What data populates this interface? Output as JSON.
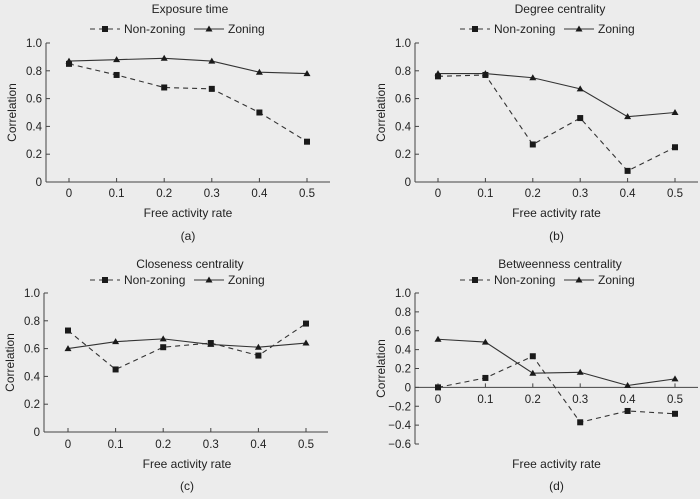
{
  "chart_data": [
    {
      "type": "line",
      "title": "Exposure time",
      "panel_label": "(a)",
      "xlabel": "Free activity rate",
      "ylabel": "Correlation",
      "x": [
        0,
        0.1,
        0.2,
        0.3,
        0.4,
        0.5
      ],
      "x_tick_labels": [
        "0",
        "0.1",
        "0.2",
        "0.3",
        "0.4",
        "0.5"
      ],
      "ylim": [
        0,
        1.0
      ],
      "y_tick_labels": [
        "0",
        "0.2",
        "0.4",
        "0.6",
        "0.8",
        "1.0"
      ],
      "y_ticks": [
        0,
        0.2,
        0.4,
        0.6,
        0.8,
        1.0
      ],
      "legend_position": "top",
      "grid": false,
      "series": [
        {
          "name": "Non-zoning",
          "style": "dashed",
          "marker": "square",
          "values": [
            0.85,
            0.77,
            0.68,
            0.67,
            0.5,
            0.29
          ]
        },
        {
          "name": "Zoning",
          "style": "solid",
          "marker": "triangle",
          "values": [
            0.87,
            0.88,
            0.89,
            0.87,
            0.79,
            0.78
          ]
        }
      ]
    },
    {
      "type": "line",
      "title": "Degree centrality",
      "panel_label": "(b)",
      "xlabel": "Free activity rate",
      "ylabel": "Correlation",
      "x": [
        0,
        0.1,
        0.2,
        0.3,
        0.4,
        0.5
      ],
      "x_tick_labels": [
        "0",
        "0.1",
        "0.2",
        "0.3",
        "0.4",
        "0.5"
      ],
      "ylim": [
        0,
        1.0
      ],
      "y_tick_labels": [
        "0",
        "0.2",
        "0.4",
        "0.6",
        "0.8",
        "1.0"
      ],
      "y_ticks": [
        0,
        0.2,
        0.4,
        0.6,
        0.8,
        1.0
      ],
      "legend_position": "top",
      "grid": false,
      "series": [
        {
          "name": "Non-zoning",
          "style": "dashed",
          "marker": "square",
          "values": [
            0.76,
            0.77,
            0.27,
            0.46,
            0.08,
            0.25
          ]
        },
        {
          "name": "Zoning",
          "style": "solid",
          "marker": "triangle",
          "values": [
            0.78,
            0.78,
            0.75,
            0.67,
            0.47,
            0.5
          ]
        }
      ]
    },
    {
      "type": "line",
      "title": "Closeness centrality",
      "panel_label": "(c)",
      "xlabel": "Free activity rate",
      "ylabel": "Correlation",
      "x": [
        0,
        0.1,
        0.2,
        0.3,
        0.4,
        0.5
      ],
      "x_tick_labels": [
        "0",
        "0.1",
        "0.2",
        "0.3",
        "0.4",
        "0.5"
      ],
      "ylim": [
        0,
        1.0
      ],
      "y_tick_labels": [
        "0",
        "0.2",
        "0.4",
        "0.6",
        "0.8",
        "1.0"
      ],
      "y_ticks": [
        0,
        0.2,
        0.4,
        0.6,
        0.8,
        1.0
      ],
      "legend_position": "top",
      "grid": false,
      "series": [
        {
          "name": "Non-zoning",
          "style": "dashed",
          "marker": "square",
          "values": [
            0.73,
            0.45,
            0.61,
            0.64,
            0.55,
            0.78
          ]
        },
        {
          "name": "Zoning",
          "style": "solid",
          "marker": "triangle",
          "values": [
            0.6,
            0.65,
            0.67,
            0.63,
            0.61,
            0.64
          ]
        }
      ]
    },
    {
      "type": "line",
      "title": "Betweenness centrality",
      "panel_label": "(d)",
      "xlabel": "Free activity rate",
      "ylabel": "Correlation",
      "x": [
        0,
        0.1,
        0.2,
        0.3,
        0.4,
        0.5
      ],
      "x_tick_labels": [
        "0",
        "0.1",
        "0.2",
        "0.3",
        "0.4",
        "0.5"
      ],
      "ylim": [
        -0.6,
        1.0
      ],
      "y_tick_labels": [
        "−0.6",
        "−0.4",
        "−0.2",
        "0",
        "0.2",
        "0.4",
        "0.6",
        "0.8",
        "1.0"
      ],
      "y_ticks": [
        -0.6,
        -0.4,
        -0.2,
        0,
        0.2,
        0.4,
        0.6,
        0.8,
        1.0
      ],
      "legend_position": "top",
      "grid": false,
      "series": [
        {
          "name": "Non-zoning",
          "style": "dashed",
          "marker": "square",
          "values": [
            0.0,
            0.1,
            0.33,
            -0.37,
            -0.25,
            -0.28
          ]
        },
        {
          "name": "Zoning",
          "style": "solid",
          "marker": "triangle",
          "values": [
            0.51,
            0.48,
            0.15,
            0.16,
            0.02,
            0.09
          ]
        }
      ]
    }
  ]
}
